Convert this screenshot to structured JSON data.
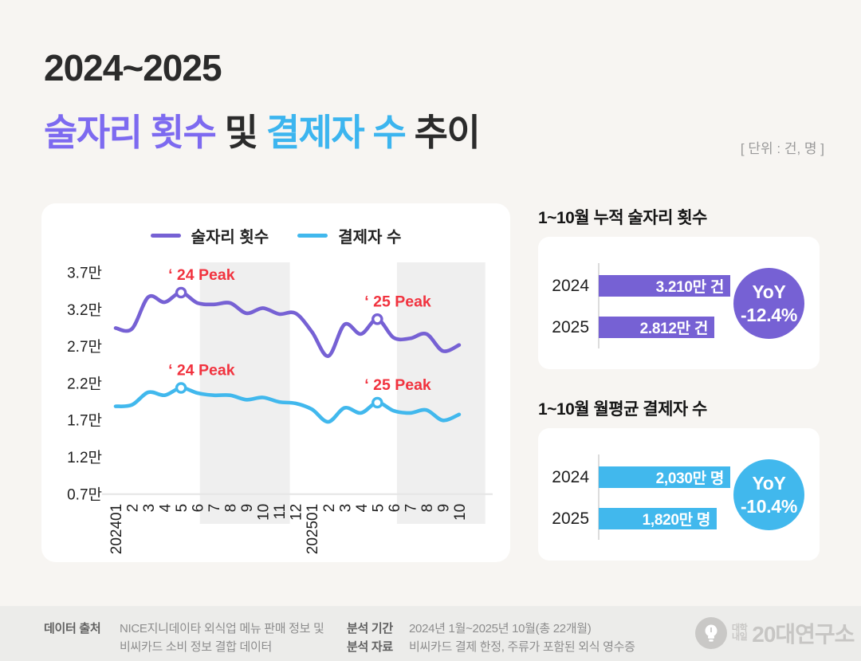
{
  "header": {
    "title_line1": "2024~2025",
    "title_accent1": "술자리 횟수",
    "title_mid": " 및 ",
    "title_accent2": "결제자 수",
    "title_tail": " 추이",
    "unit_label": "[ 단위 : 건, 명 ]"
  },
  "colors": {
    "purple_accent": "#7d6af0",
    "blue_accent": "#3cb5ef",
    "purple": "#7661d4",
    "blue": "#41b8ed",
    "red": "#f1333f",
    "band_gray": "#efefef",
    "axis_gray": "#e5e5e5",
    "tick_text": "#1f1f1f"
  },
  "chart_data": {
    "type": "line",
    "title": "",
    "xlabel": "",
    "ylabel": "",
    "legend_position": "top",
    "grid": false,
    "x": [
      "202401",
      "2",
      "3",
      "4",
      "5",
      "6",
      "7",
      "8",
      "9",
      "10",
      "11",
      "12",
      "202501",
      "2",
      "3",
      "4",
      "5",
      "6",
      "7",
      "8",
      "9",
      "10"
    ],
    "ytick_labels": [
      "3.7만",
      "3.2만",
      "2.7만",
      "2.2만",
      "1.7만",
      "1.2만",
      "0.7만"
    ],
    "ytick_values": [
      3.7,
      3.2,
      2.7,
      2.2,
      1.7,
      1.2,
      0.7
    ],
    "ylim": [
      0.7,
      3.7
    ],
    "unit_note": "values are in 만 (10,000s)",
    "series": [
      {
        "name": "술자리 횟수",
        "color_key": "purple",
        "values": [
          2.95,
          2.94,
          3.37,
          3.3,
          3.43,
          3.29,
          3.27,
          3.29,
          3.15,
          3.22,
          3.14,
          3.15,
          2.9,
          2.57,
          3.0,
          2.87,
          3.07,
          2.82,
          2.81,
          2.87,
          2.64,
          2.72
        ]
      },
      {
        "name": "결제자 수",
        "color_key": "blue",
        "values": [
          1.89,
          1.91,
          2.08,
          2.04,
          2.14,
          2.07,
          2.04,
          2.04,
          1.98,
          2.01,
          1.95,
          1.93,
          1.85,
          1.68,
          1.87,
          1.8,
          1.94,
          1.83,
          1.8,
          1.84,
          1.7,
          1.78
        ]
      }
    ],
    "shaded_bands": [
      {
        "x_from": 6.15,
        "x_to": 11.65
      },
      {
        "x_from": 18.2,
        "x_to": 23.6
      }
    ],
    "annotations": [
      {
        "series": 0,
        "x_index": 4,
        "label": "‘ 24 Peak"
      },
      {
        "series": 0,
        "x_index": 16,
        "label": "‘ 25 Peak"
      },
      {
        "series": 1,
        "x_index": 4,
        "label": "‘ 24 Peak"
      },
      {
        "series": 1,
        "x_index": 16,
        "label": "‘ 25 Peak"
      }
    ]
  },
  "panels": [
    {
      "title": "1~10월 누적 술자리 횟수",
      "color_key": "purple",
      "rows": [
        {
          "label": "2024",
          "value": 3210,
          "value_label": "3.210만 건"
        },
        {
          "label": "2025",
          "value": 2812,
          "value_label": "2.812만 건"
        }
      ],
      "yoy_line1": "YoY",
      "yoy_line2": "-12.4%"
    },
    {
      "title": "1~10월 월평균 결제자 수",
      "color_key": "blue",
      "rows": [
        {
          "label": "2024",
          "value": 2030,
          "value_label": "2,030만 명"
        },
        {
          "label": "2025",
          "value": 1820,
          "value_label": "1,820만 명"
        }
      ],
      "yoy_line1": "YoY",
      "yoy_line2": "-10.4%"
    }
  ],
  "footer": {
    "source_label": "데이터 출처",
    "source_line1": "NICE지니데이타 외식업 메뉴 판매 정보 및",
    "source_line2": "비씨카드 소비 정보 결합 데이터",
    "period_label": "분석 기간",
    "period_value": "2024년 1월~2025년 10월(총 22개월)",
    "material_label": "분석 자료",
    "material_value": "비씨카드 결제 한정, 주류가 포함된 외식 영수증",
    "logo": {
      "small_line1": "대학",
      "small_line2": "내일",
      "large": "20대연구소"
    }
  }
}
